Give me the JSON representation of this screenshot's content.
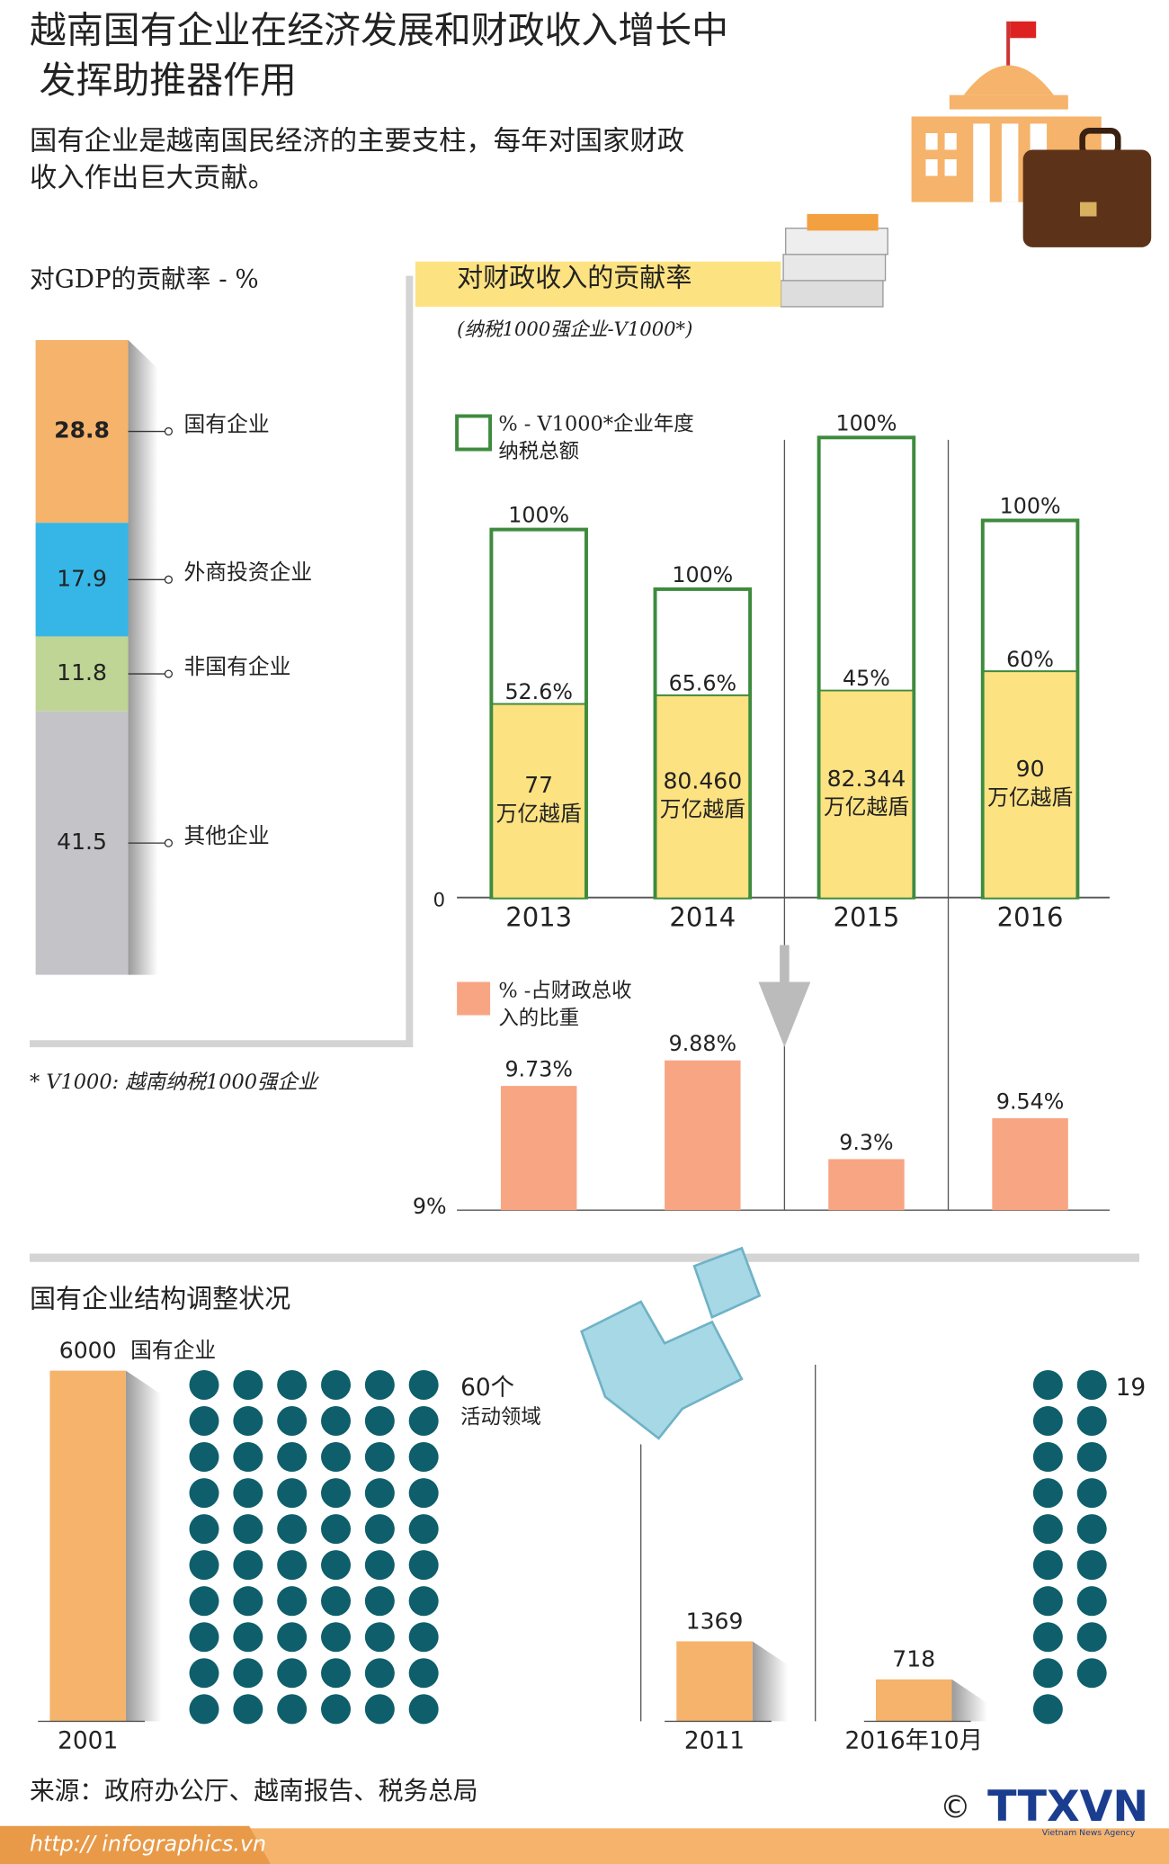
{
  "title": [
    "越南国有企业在经济发展和财政收入增长中",
    "发挥助推器作用"
  ],
  "subtitle": [
    "国有企业是越南国民经济的主要支柱，每年对国家财政",
    "收入作出巨大贡献。"
  ],
  "footnote": "* V1000: 越南纳税1000强企业",
  "source": "来源：政府办公厅、越南报告、税务总局",
  "url": "http:// infographics.vn",
  "logo": "TTXVN",
  "agency": "Vietnam News Agency",
  "copyright": "©",
  "chart_data": [
    {
      "type": "stacked_bar",
      "title": "对GDP的贡献率 - %",
      "categories": [
        "国有企业",
        "外商投资企业",
        "非国有企业",
        "其他企业"
      ],
      "values": [
        28.8,
        17.9,
        11.8,
        41.5
      ],
      "colors": [
        "#f5b36b",
        "#35b6e6",
        "#bfd595",
        "#c4c4c8"
      ],
      "ylim": [
        0,
        100
      ]
    },
    {
      "type": "box_bar",
      "title": "对财政收入的贡献率",
      "subtitle": "(纳税1000强企业-V1000*)",
      "categories": [
        "2013",
        "2014",
        "2015",
        "2016"
      ],
      "total_label": "100%",
      "unit": "万亿越盾",
      "series": [
        {
          "name": "% - V1000*企业年度纳税总额",
          "color": "#fde281",
          "values": [
            52.6,
            65.6,
            45,
            60
          ],
          "value_labels": [
            "52.6%",
            "65.6%",
            "45%",
            "60%"
          ]
        },
        {
          "color": "#fde281",
          "values": [
            77,
            80.46,
            82.344,
            90
          ],
          "value_labels": [
            "77",
            "80.460",
            "82.344",
            "90"
          ]
        }
      ],
      "outline": "#3e8b3e",
      "ylim": [
        0,
        183
      ],
      "yticks": [
        0
      ]
    },
    {
      "type": "bar",
      "series": [
        {
          "name": "% -占财政总收入的比重",
          "color": "#f8a584",
          "values": [
            9.73,
            9.88,
            9.3,
            9.54
          ],
          "value_labels": [
            "9.73%",
            "9.88%",
            "9.3%",
            "9.54%"
          ]
        }
      ],
      "ylim": [
        9,
        9.88
      ],
      "yticks": [
        {
          "value": 9,
          "label": "9%"
        }
      ]
    },
    {
      "type": "bar",
      "title": "国有企业结构调整状况",
      "categories": [
        "2001",
        "2011",
        "2016年10月"
      ],
      "series": [
        {
          "name": "国有企业",
          "color": "#f5b36b",
          "values": [
            6000,
            1369,
            718
          ]
        }
      ],
      "ylim": [
        0,
        6000
      ]
    },
    {
      "type": "dots",
      "color": "#0e5f6b",
      "values": [
        60,
        19
      ],
      "value_labels": [
        "60个",
        "19"
      ],
      "note": "活动领域"
    }
  ]
}
